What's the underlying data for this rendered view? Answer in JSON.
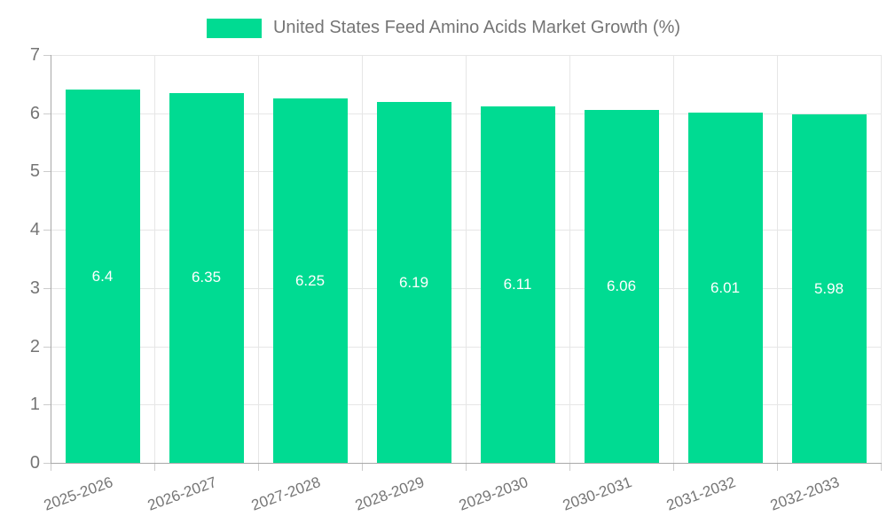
{
  "chart_data": {
    "type": "bar",
    "title": "United States Feed Amino Acids Market Growth (%)",
    "categories": [
      "2025-2026",
      "2026-2027",
      "2027-2028",
      "2028-2029",
      "2029-2030",
      "2030-2031",
      "2031-2032",
      "2032-2033"
    ],
    "values": [
      6.4,
      6.35,
      6.25,
      6.19,
      6.11,
      6.06,
      6.01,
      5.98
    ],
    "value_labels": [
      "6.4",
      "6.35",
      "6.25",
      "6.19",
      "6.11",
      "6.06",
      "6.01",
      "5.98"
    ],
    "xlabel": "",
    "ylabel": "",
    "ylim": [
      0,
      7
    ],
    "yticks": [
      "0",
      "1",
      "2",
      "3",
      "4",
      "5",
      "6",
      "7"
    ],
    "grid": true,
    "legend_position": "top-center",
    "bar_color": "#00DB92",
    "value_label_color": "#ffffff",
    "axis_label_color": "#757575",
    "grid_color": "#e6e6e6",
    "axis_line_color": "#a8a8a8",
    "tick_color": "#cccccc",
    "x_label_rotation_deg": -20
  }
}
